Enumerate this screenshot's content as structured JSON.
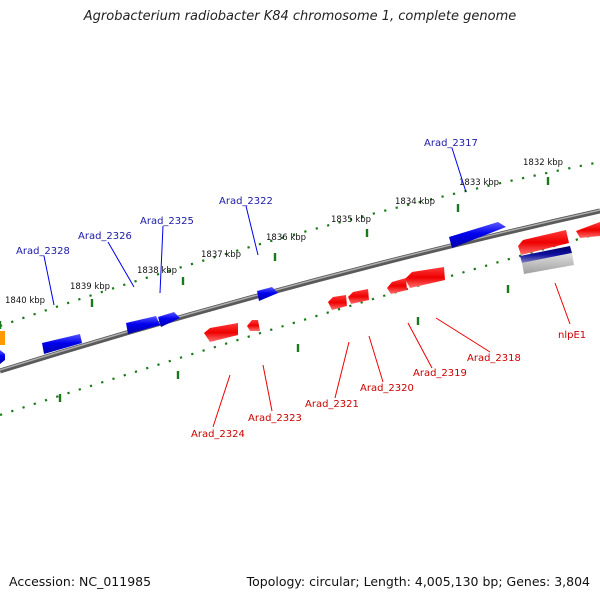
{
  "title": "Agrobacterium radiobacter K84 chromosome 1, complete genome",
  "footer": {
    "accession": "Accession: NC_011985",
    "summary": "Topology: circular; Length: 4,005,130 bp; Genes: 3,804"
  },
  "colors": {
    "forward": "#0000ee",
    "reverse": "#ee0000",
    "forward_label": "#1a1aa8",
    "reverse_label": "#cc0000",
    "tick": "#1a7a1a",
    "backbone": "#808080",
    "other": "#ff9900"
  },
  "scale_labels": [
    "1840 kbp",
    "1839 kbp",
    "1838 kbp",
    "1837 kbp",
    "1836 kbp",
    "1835 kbp",
    "1834 kbp",
    "1833 kbp",
    "1832 kbp"
  ],
  "genes": {
    "forward": [
      "Arad_2328",
      "Arad_2326",
      "Arad_2325",
      "Arad_2322",
      "Arad_2317"
    ],
    "reverse": [
      "Arad_2324",
      "Arad_2323",
      "Arad_2321",
      "Arad_2320",
      "Arad_2319",
      "Arad_2318",
      "nlpE1"
    ]
  }
}
